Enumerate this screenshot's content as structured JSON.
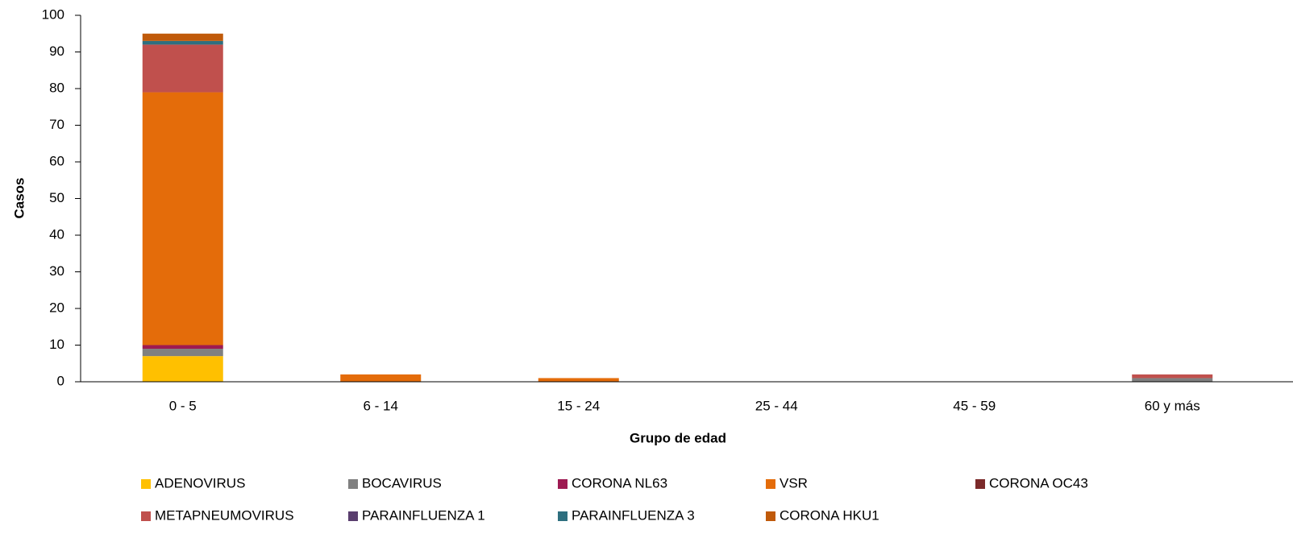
{
  "chart_data": {
    "type": "stacked_bar",
    "categories": [
      "0 - 5",
      "6 - 14",
      "15 - 24",
      "25 - 44",
      "45 - 59",
      "60 y más"
    ],
    "x_label": "Grupo de edad",
    "y_label": "Casos",
    "ylim": [
      0,
      100
    ],
    "yticks": [
      0,
      10,
      20,
      30,
      40,
      50,
      60,
      70,
      80,
      90,
      100
    ],
    "grid": false,
    "legend": "bottom",
    "series": [
      {
        "name": "ADENOVIRUS",
        "color": "#ffc000",
        "values": [
          7,
          0,
          0,
          0,
          0,
          0
        ]
      },
      {
        "name": "BOCAVIRUS",
        "color": "#808080",
        "values": [
          2,
          0,
          0,
          0,
          0,
          1
        ]
      },
      {
        "name": "CORONA NL63",
        "color": "#9e1a52",
        "values": [
          1,
          0,
          0,
          0,
          0,
          0
        ]
      },
      {
        "name": "VSR",
        "color": "#e46c0a",
        "values": [
          69,
          2,
          1,
          0,
          0,
          0
        ]
      },
      {
        "name": "CORONA OC43",
        "color": "#7b2a2a",
        "values": [
          0,
          0,
          0,
          0,
          0,
          0
        ]
      },
      {
        "name": "METAPNEUMOVIRUS",
        "color": "#c0504d",
        "values": [
          13,
          0,
          0,
          0,
          0,
          1
        ]
      },
      {
        "name": "PARAINFLUENZA 1",
        "color": "#5a3e6e",
        "values": [
          0,
          0,
          0,
          0,
          0,
          0
        ]
      },
      {
        "name": "PARAINFLUENZA 3",
        "color": "#2e6f7f",
        "values": [
          1,
          0,
          0,
          0,
          0,
          0
        ]
      },
      {
        "name": "CORONA HKU1",
        "color": "#c05a0a",
        "values": [
          2,
          0,
          0,
          0,
          0,
          0
        ]
      }
    ]
  }
}
